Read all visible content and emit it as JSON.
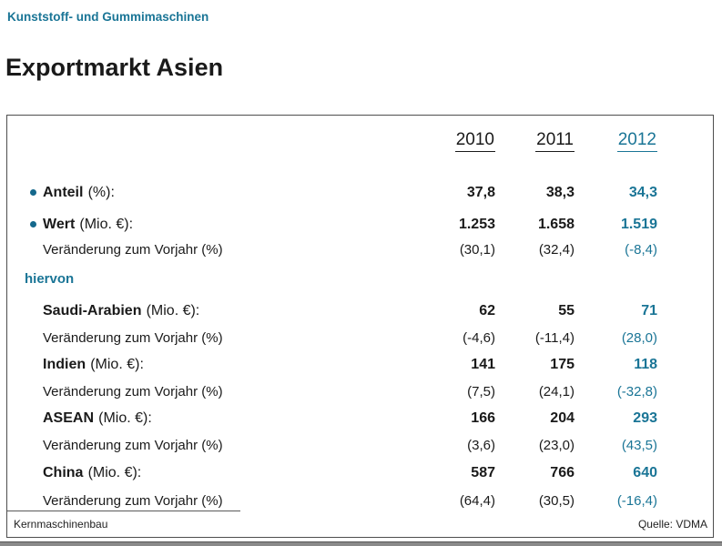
{
  "page": {
    "eyebrow": "Kunststoff- und Gummimaschinen",
    "title": "Exportmarkt Asien",
    "footer_left": "Kernmaschinenbau",
    "footer_right": "Quelle: VDMA"
  },
  "colors": {
    "accent_teal": "#1a7596",
    "text": "#1a1a1a",
    "box_border": "#4e4e4e"
  },
  "table": {
    "years": [
      "2010",
      "2011",
      "2012"
    ],
    "rows": [
      {
        "type": "bullet",
        "label_bold": "Anteil",
        "label_rest": "(%):",
        "values": [
          "37,8",
          "38,3",
          "34,3"
        ]
      },
      {
        "type": "bullet",
        "label_bold": "Wert",
        "label_rest": "(Mio. €):",
        "values": [
          "1.253",
          "1.658",
          "1.519"
        ]
      },
      {
        "type": "sub",
        "label": "Veränderung zum Vorjahr (%)",
        "values": [
          "(30,1)",
          "(32,4)",
          "(-8,4)"
        ]
      },
      {
        "type": "section",
        "label": "hiervon"
      },
      {
        "type": "country",
        "label_bold": "Saudi-Arabien",
        "label_rest": "(Mio. €):",
        "values": [
          "62",
          "55",
          "71"
        ]
      },
      {
        "type": "sub",
        "label": "Veränderung zum Vorjahr (%)",
        "values": [
          "(-4,6)",
          "(-11,4)",
          "(28,0)"
        ]
      },
      {
        "type": "country",
        "label_bold": "Indien",
        "label_rest": "(Mio. €):",
        "values": [
          "141",
          "175",
          "118"
        ]
      },
      {
        "type": "sub",
        "label": "Veränderung zum Vorjahr (%)",
        "values": [
          "(7,5)",
          "(24,1)",
          "(-32,8)"
        ]
      },
      {
        "type": "country",
        "label_bold": "ASEAN",
        "label_rest": "(Mio. €):",
        "values": [
          "166",
          "204",
          "293"
        ]
      },
      {
        "type": "sub",
        "label": "Veränderung zum Vorjahr (%)",
        "values": [
          "(3,6)",
          "(23,0)",
          "(43,5)"
        ]
      },
      {
        "type": "country",
        "label_bold": "China",
        "label_rest": "(Mio. €):",
        "values": [
          "587",
          "766",
          "640"
        ]
      },
      {
        "type": "sub",
        "label": "Veränderung zum Vorjahr (%)",
        "values": [
          "(64,4)",
          "(30,5)",
          "(-16,4)"
        ]
      }
    ]
  }
}
